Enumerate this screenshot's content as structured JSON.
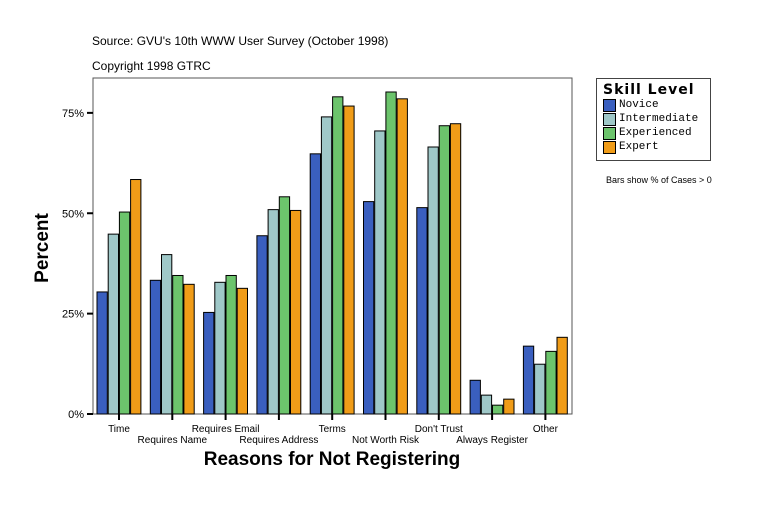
{
  "header": {
    "source": "Source: GVU's 10th WWW User Survey (October 1998)",
    "copyright": "Copyright 1998 GTRC"
  },
  "note": "Bars show % of Cases > 0",
  "chart_data": {
    "type": "bar",
    "xlabel": "Reasons for Not Registering",
    "ylabel": "Percent",
    "ylim": [
      0,
      83
    ],
    "yticks": [
      {
        "v": 0,
        "label": "0%"
      },
      {
        "v": 25,
        "label": "25%"
      },
      {
        "v": 50,
        "label": "50%"
      },
      {
        "v": 75,
        "label": "75%"
      }
    ],
    "grid": false,
    "legend_title": "Skill Level",
    "legend_position": "right",
    "categories": [
      "Time",
      "Requires Name",
      "Requires Email",
      "Requires Address",
      "Terms",
      "Not Worth Risk",
      "Don't Trust",
      "Always Register",
      "Other"
    ],
    "series": [
      {
        "name": "Novice",
        "color": "#3a5fbf",
        "values": [
          30.4,
          33.3,
          25.3,
          44.4,
          64.8,
          52.9,
          51.4,
          8.4,
          16.9
        ]
      },
      {
        "name": "Intermediate",
        "color": "#9fc8c8",
        "values": [
          44.8,
          39.7,
          32.8,
          50.9,
          74.0,
          70.5,
          66.5,
          4.7,
          12.4
        ]
      },
      {
        "name": "Experienced",
        "color": "#6cc46c",
        "values": [
          50.3,
          34.5,
          34.5,
          54.1,
          79.0,
          80.2,
          71.8,
          2.2,
          15.6
        ]
      },
      {
        "name": "Expert",
        "color": "#f09c18",
        "values": [
          58.4,
          32.3,
          31.3,
          50.7,
          76.7,
          78.5,
          72.3,
          3.7,
          19.1
        ]
      }
    ]
  }
}
